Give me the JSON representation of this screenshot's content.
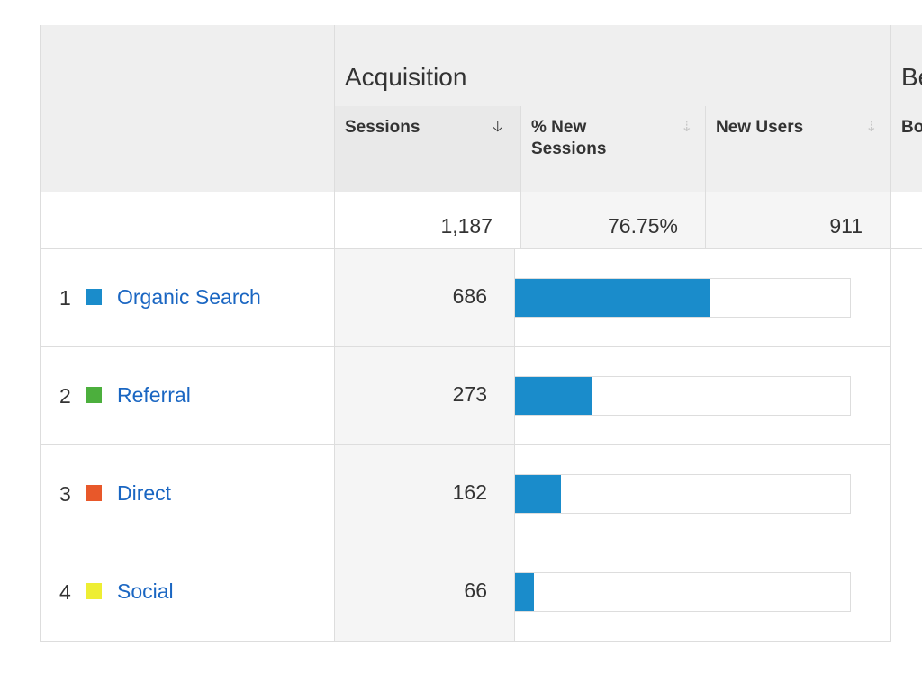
{
  "header": {
    "group_label": "Acquisition",
    "next_group_label": "Behavior",
    "columns": {
      "sessions": "Sessions",
      "new_sessions_pct": "% New\nSessions",
      "new_users": "New Users",
      "next": "Bounce Rate"
    }
  },
  "totals": {
    "sessions": "1,187",
    "new_sessions_pct": "76.75%",
    "new_users": "911"
  },
  "rows": [
    {
      "index": "1",
      "name": "Organic Search",
      "color": "#1a8ccb",
      "sessions": "686",
      "share": 0.578
    },
    {
      "index": "2",
      "name": "Referral",
      "color": "#4caf3d",
      "sessions": "273",
      "share": 0.23
    },
    {
      "index": "3",
      "name": "Direct",
      "color": "#e8582a",
      "sessions": "162",
      "share": 0.136
    },
    {
      "index": "4",
      "name": "Social",
      "color": "#eeee33",
      "sessions": "66",
      "share": 0.056
    }
  ],
  "colors": {
    "bar": "#1a8ccb",
    "link": "#1a66c2"
  }
}
